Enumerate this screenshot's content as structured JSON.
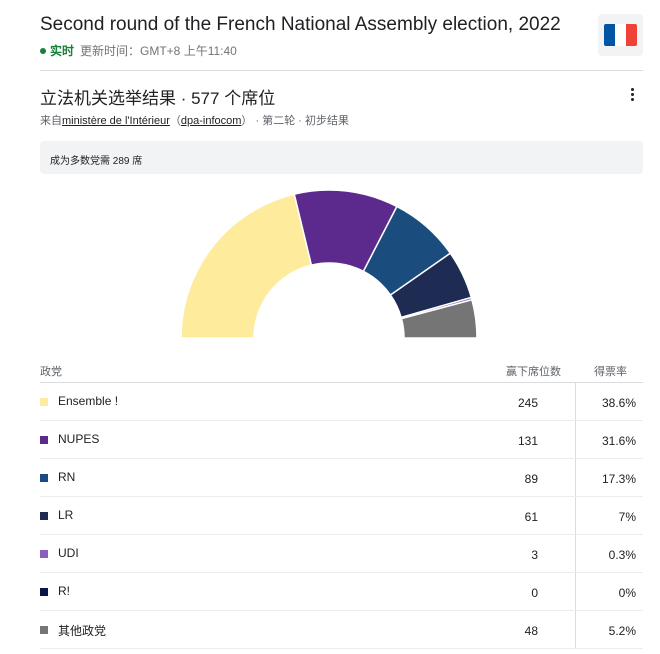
{
  "header": {
    "title": "Second round of the French National Assembly election, 2022",
    "live_label": "实时",
    "updated_text": "更新时间：GMT+8 上午11:40"
  },
  "subtitle": "立法机关选举结果 · 577 个席位",
  "source": {
    "prefix": "来自",
    "link1": "ministère de l'Intérieur",
    "paren_open": "（",
    "link2": "dpa-infocom",
    "paren_close": "）",
    "suffix": " · 第二轮 · 初步结果"
  },
  "banner": "成为多数党需 289 席",
  "table": {
    "col_party": "政党",
    "col_seats": "赢下席位数",
    "col_vote": "得票率"
  },
  "colors": {
    "flag_blue": "#0055a4",
    "flag_white": "#ffffff",
    "flag_red": "#ef4135"
  },
  "chart_data": {
    "type": "semicircle",
    "total_seats": 577,
    "majority": 289,
    "parties": [
      {
        "name": "Ensemble !",
        "seats": 245,
        "vote_share": "38.6%",
        "color": "#ffeb9c"
      },
      {
        "name": "NUPES",
        "seats": 131,
        "vote_share": "31.6%",
        "color": "#5c2a8c"
      },
      {
        "name": "RN",
        "seats": 89,
        "vote_share": "17.3%",
        "color": "#1a4c7d"
      },
      {
        "name": "LR",
        "seats": 61,
        "vote_share": "7%",
        "color": "#1e2b52"
      },
      {
        "name": "UDI",
        "seats": 3,
        "vote_share": "0.3%",
        "color": "#8b5fbf"
      },
      {
        "name": "R!",
        "seats": 0,
        "vote_share": "0%",
        "color": "#0b1646"
      },
      {
        "name": "其他政党",
        "seats": 48,
        "vote_share": "5.2%",
        "color": "#757575"
      }
    ]
  }
}
